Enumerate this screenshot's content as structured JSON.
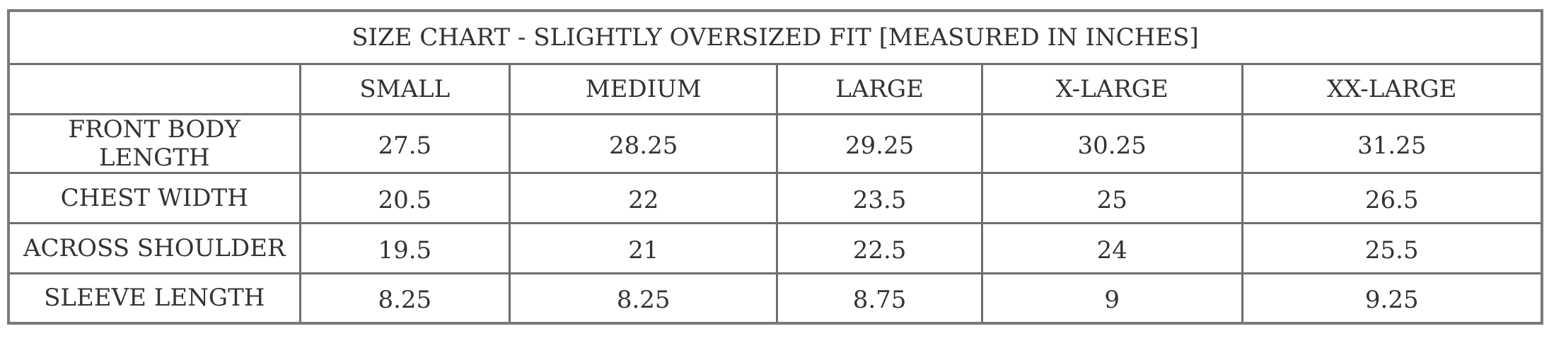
{
  "title": "SIZE CHART - SLIGHTLY OVERSIZED FIT [MEASURED IN INCHES]",
  "columns": [
    "",
    "SMALL",
    "MEDIUM",
    "LARGE",
    "X-LARGE",
    "XX-LARGE"
  ],
  "rows": [
    {
      "label": "FRONT BODY LENGTH",
      "values": [
        "27.5",
        "28.25",
        "29.25",
        "30.25",
        "31.25"
      ]
    },
    {
      "label": "CHEST WIDTH",
      "values": [
        "20.5",
        "22",
        "23.5",
        "25",
        "26.5"
      ]
    },
    {
      "label": "ACROSS SHOULDER",
      "values": [
        "19.5",
        "21",
        "22.5",
        "24",
        "25.5"
      ]
    },
    {
      "label": "SLEEVE LENGTH",
      "values": [
        "8.25",
        "8.25",
        "8.75",
        "9",
        "9.25"
      ]
    }
  ]
}
